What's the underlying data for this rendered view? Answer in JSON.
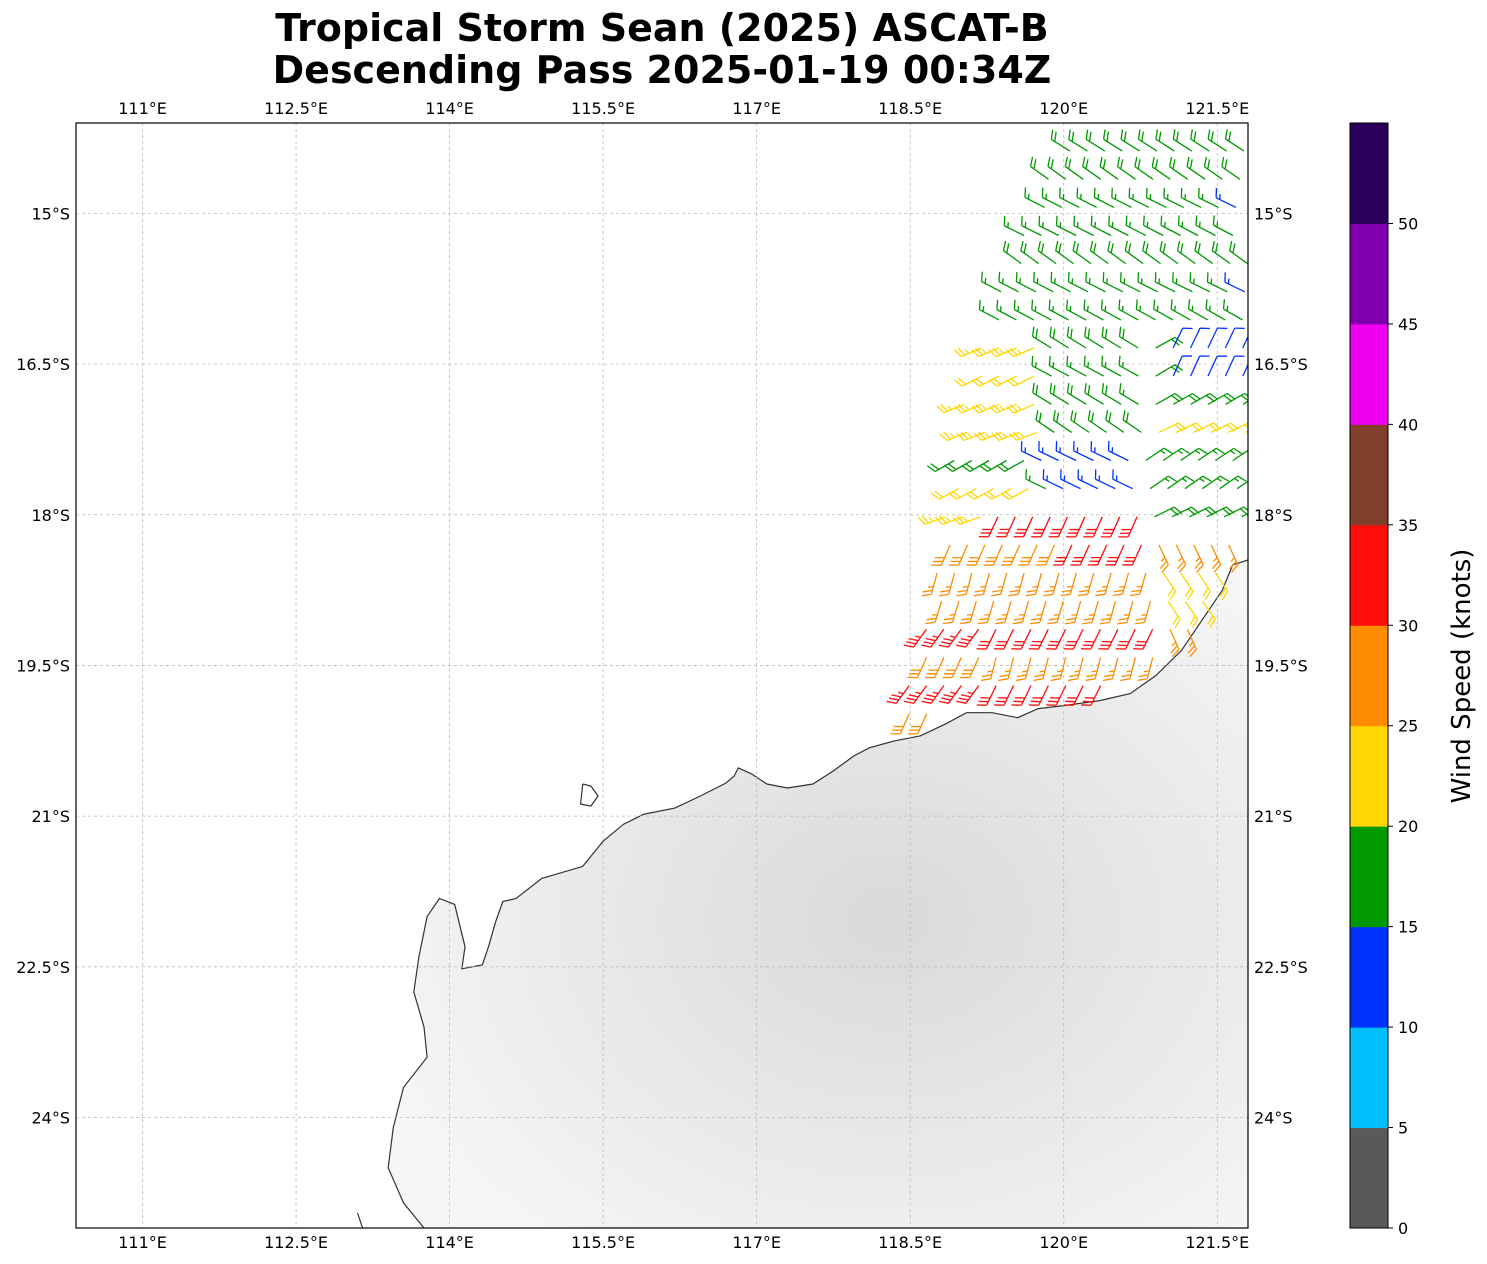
{
  "title": {
    "line1": "Tropical Storm Sean (2025) ASCAT-B",
    "line2": "Descending Pass 2025-01-19 00:34Z"
  },
  "map": {
    "lon_min": 110.35,
    "lon_max": 121.8,
    "lat_min": -25.1,
    "lat_max": -14.1,
    "lon_ticks": [
      {
        "value": 111.0,
        "label": "111°E"
      },
      {
        "value": 112.5,
        "label": "112.5°E"
      },
      {
        "value": 114.0,
        "label": "114°E"
      },
      {
        "value": 115.5,
        "label": "115.5°E"
      },
      {
        "value": 117.0,
        "label": "117°E"
      },
      {
        "value": 118.5,
        "label": "118.5°E"
      },
      {
        "value": 120.0,
        "label": "120°E"
      },
      {
        "value": 121.5,
        "label": "121.5°E"
      }
    ],
    "lat_ticks": [
      {
        "value": -15.0,
        "label": "15°S"
      },
      {
        "value": -16.5,
        "label": "16.5°S"
      },
      {
        "value": -18.0,
        "label": "18°S"
      },
      {
        "value": -19.5,
        "label": "19.5°S"
      },
      {
        "value": -21.0,
        "label": "21°S"
      },
      {
        "value": -22.5,
        "label": "22.5°S"
      },
      {
        "value": -24.0,
        "label": "24°S"
      }
    ],
    "coastline": [
      [
        121.8,
        -18.45
      ],
      [
        121.65,
        -18.5
      ],
      [
        121.55,
        -18.75
      ],
      [
        121.35,
        -19.05
      ],
      [
        121.15,
        -19.35
      ],
      [
        120.9,
        -19.6
      ],
      [
        120.65,
        -19.78
      ],
      [
        120.35,
        -19.85
      ],
      [
        120.0,
        -19.9
      ],
      [
        119.75,
        -19.93
      ],
      [
        119.55,
        -20.02
      ],
      [
        119.3,
        -19.97
      ],
      [
        119.05,
        -19.97
      ],
      [
        118.85,
        -20.08
      ],
      [
        118.6,
        -20.2
      ],
      [
        118.35,
        -20.25
      ],
      [
        118.1,
        -20.32
      ],
      [
        117.95,
        -20.4
      ],
      [
        117.75,
        -20.55
      ],
      [
        117.55,
        -20.68
      ],
      [
        117.3,
        -20.72
      ],
      [
        117.1,
        -20.68
      ],
      [
        116.95,
        -20.58
      ],
      [
        116.82,
        -20.52
      ],
      [
        116.78,
        -20.6
      ],
      [
        116.7,
        -20.67
      ],
      [
        116.45,
        -20.8
      ],
      [
        116.2,
        -20.92
      ],
      [
        115.9,
        -20.98
      ],
      [
        115.7,
        -21.08
      ],
      [
        115.5,
        -21.25
      ],
      [
        115.3,
        -21.5
      ],
      [
        114.9,
        -21.62
      ],
      [
        114.65,
        -21.82
      ],
      [
        114.52,
        -21.85
      ],
      [
        114.45,
        -22.05
      ],
      [
        114.38,
        -22.3
      ],
      [
        114.32,
        -22.48
      ],
      [
        114.12,
        -22.52
      ],
      [
        114.15,
        -22.3
      ],
      [
        114.05,
        -21.88
      ],
      [
        113.9,
        -21.82
      ],
      [
        113.78,
        -22.0
      ],
      [
        113.7,
        -22.4
      ],
      [
        113.65,
        -22.75
      ],
      [
        113.75,
        -23.1
      ],
      [
        113.78,
        -23.4
      ],
      [
        113.55,
        -23.7
      ],
      [
        113.45,
        -24.1
      ],
      [
        113.4,
        -24.5
      ],
      [
        113.55,
        -24.85
      ],
      [
        113.75,
        -25.1
      ]
    ],
    "islands": [
      [
        [
          115.3,
          -20.68
        ],
        [
          115.38,
          -20.7
        ],
        [
          115.45,
          -20.8
        ],
        [
          115.38,
          -20.9
        ],
        [
          115.28,
          -20.88
        ],
        [
          115.3,
          -20.68
        ]
      ],
      [
        [
          113.1,
          -24.95
        ],
        [
          113.15,
          -25.1
        ]
      ]
    ],
    "land_color": "#e6e6e6",
    "coast_color": "#333333"
  },
  "colorbar": {
    "label": "Wind Speed (knots)",
    "min": 0,
    "max": 55,
    "colors": [
      "#595959",
      "#00bfff",
      "#0033ff",
      "#009900",
      "#ffd700",
      "#ff8c00",
      "#ff0d0d",
      "#7f3f2a",
      "#f000f0",
      "#8000b0",
      "#2b005c"
    ],
    "ticks": [
      {
        "value": 0,
        "label": "0"
      },
      {
        "value": 5,
        "label": "5"
      },
      {
        "value": 10,
        "label": "10"
      },
      {
        "value": 15,
        "label": "15"
      },
      {
        "value": 20,
        "label": "20"
      },
      {
        "value": 25,
        "label": "25"
      },
      {
        "value": 30,
        "label": "30"
      },
      {
        "value": 35,
        "label": "35"
      },
      {
        "value": 40,
        "label": "40"
      },
      {
        "value": 45,
        "label": "45"
      },
      {
        "value": 50,
        "label": "50"
      }
    ]
  },
  "swath": {
    "rows": [
      {
        "lat": -14.1,
        "lon_start": 120.1,
        "lon_end": 121.8
      },
      {
        "lat": -15.0,
        "lon_start": 119.7,
        "lon_end": 121.8
      },
      {
        "lat": -16.0,
        "lon_start": 119.3,
        "lon_end": 121.8
      },
      {
        "lat": -17.0,
        "lon_start": 119.0,
        "lon_end": 121.8
      },
      {
        "lat": -18.0,
        "lon_start": 118.85,
        "lon_end": 121.8
      },
      {
        "lat": -19.0,
        "lon_start": 118.7,
        "lon_end": 121.7
      },
      {
        "lat": -20.0,
        "lon_start": 118.4,
        "lon_end": 120.6
      }
    ],
    "regions": [
      {
        "name": "north-ring",
        "speed": 17,
        "dir_deg": 300
      },
      {
        "name": "northeast-inner",
        "speed": 12,
        "dir_deg": 25
      },
      {
        "name": "east-ring",
        "speed": 18,
        "dir_deg": 60
      },
      {
        "name": "west-ring",
        "speed": 22,
        "dir_deg": 245
      },
      {
        "name": "southeast-ring",
        "speed": 23,
        "dir_deg": 150
      },
      {
        "name": "south-core",
        "speed": 28,
        "dir_deg": 200
      },
      {
        "name": "southwest-core",
        "speed": 32,
        "dir_deg": 210
      }
    ]
  }
}
